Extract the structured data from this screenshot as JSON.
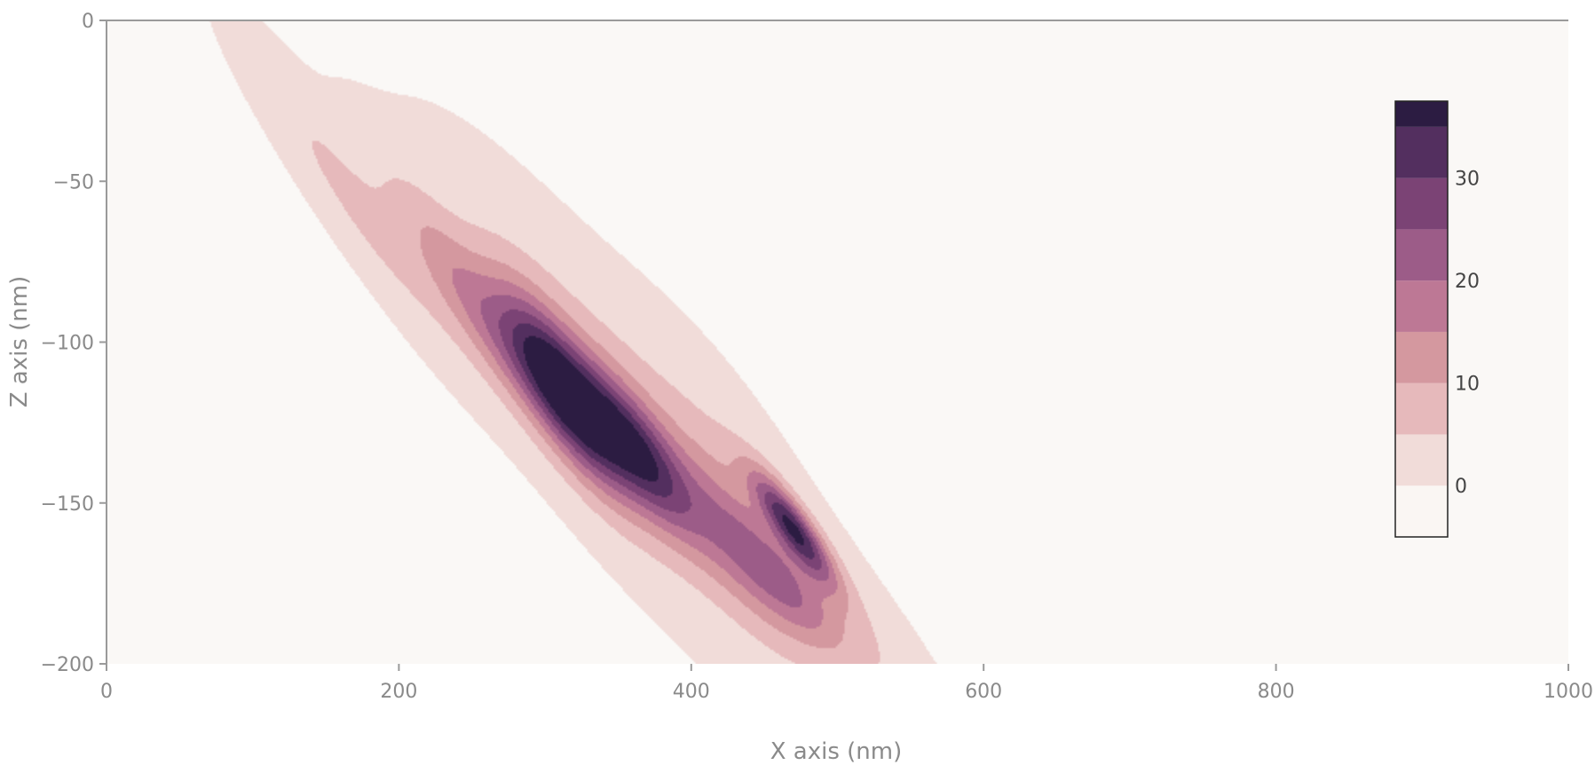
{
  "chart_data": {
    "type": "heatmap",
    "subtype": "filled-contour",
    "title": "",
    "xlabel": "X axis (nm)",
    "ylabel": "Z axis (nm)",
    "xlim": [
      0,
      1000
    ],
    "ylim": [
      -200,
      0
    ],
    "x_ticks": [
      0,
      200,
      400,
      600,
      800,
      1000
    ],
    "y_ticks": [
      0,
      -50,
      -100,
      -150,
      -200
    ],
    "grid": false,
    "plot_background": "#faf8f6",
    "colorscale": {
      "range": [
        -5,
        37.5
      ],
      "step": 5,
      "ticks": [
        0,
        10,
        20,
        30
      ],
      "colors": [
        "#faf6f3",
        "#f1dcd9",
        "#e6b9bb",
        "#d4989f",
        "#bd7895",
        "#9c5c88",
        "#7b4375",
        "#532f5f",
        "#2c1c42"
      ],
      "legend_position": "right"
    },
    "peaks": [
      {
        "x": 312,
        "z": -115,
        "value": 37,
        "sx": 34,
        "sz": 10,
        "angle_deg": -33
      },
      {
        "x": 362,
        "z": -133,
        "value": 26,
        "sx": 30,
        "sz": 9,
        "angle_deg": -30
      },
      {
        "x": 250,
        "z": -88,
        "value": 13,
        "sx": 45,
        "sz": 9,
        "angle_deg": -33
      },
      {
        "x": 170,
        "z": -57,
        "value": 6,
        "sx": 55,
        "sz": 8,
        "angle_deg": -33
      },
      {
        "x": 470,
        "z": -158,
        "value": 31,
        "sx": 22,
        "sz": 5,
        "angle_deg": -30
      },
      {
        "x": 435,
        "z": -165,
        "value": 14,
        "sx": 40,
        "sz": 11,
        "angle_deg": -28
      },
      {
        "x": 470,
        "z": -178,
        "value": 10,
        "sx": 30,
        "sz": 7,
        "angle_deg": -25
      },
      {
        "x": 350,
        "z": -125,
        "value": 8,
        "sx": 80,
        "sz": 18,
        "angle_deg": -30
      },
      {
        "x": 510,
        "z": -185,
        "value": 4,
        "sx": 55,
        "sz": 9,
        "angle_deg": -30
      },
      {
        "x": 420,
        "z": -135,
        "value": 3,
        "sx": 50,
        "sz": 14,
        "angle_deg": -30
      }
    ]
  }
}
